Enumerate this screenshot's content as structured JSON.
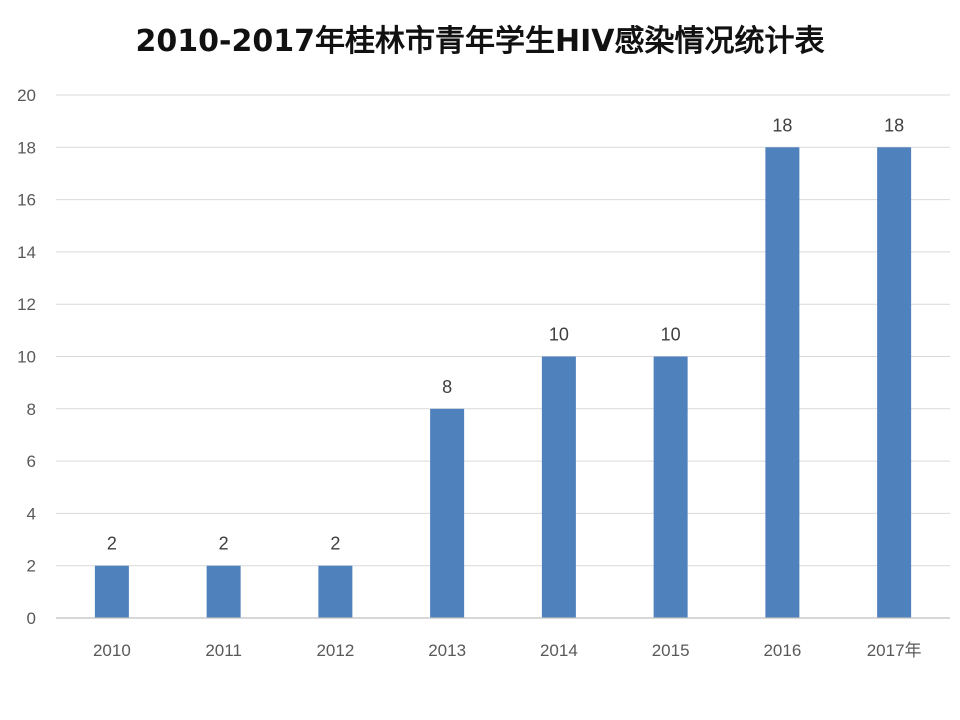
{
  "chart_data": {
    "type": "bar",
    "title": "2010-2017年桂林市青年学生HIV感染情况统计表",
    "categories": [
      "2010",
      "2011",
      "2012",
      "2013",
      "2014",
      "2015",
      "2016",
      "2017年"
    ],
    "values": [
      2,
      2,
      2,
      8,
      10,
      10,
      18,
      18
    ],
    "data_labels": [
      "2",
      "2",
      "2",
      "8",
      "10",
      "10",
      "18",
      "18"
    ],
    "xlabel": "",
    "ylabel": "",
    "ylim": [
      0,
      20
    ],
    "yticks": [
      "0",
      "2",
      "4",
      "6",
      "8",
      "10",
      "12",
      "14",
      "16",
      "18",
      "20"
    ],
    "grid": true,
    "legend": "none",
    "colors": {
      "bar": "#4f81bd",
      "grid": "#d9d9d9",
      "axis": "#bfbfbf"
    }
  }
}
